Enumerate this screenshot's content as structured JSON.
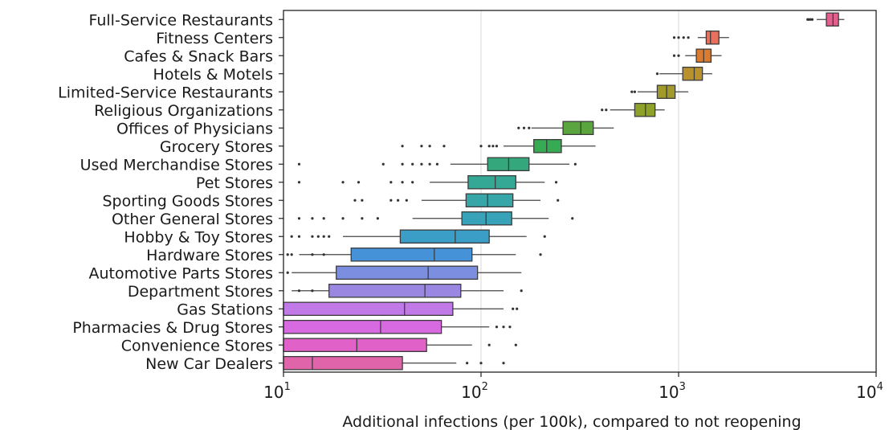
{
  "chart_data": {
    "type": "boxplot",
    "orientation": "horizontal",
    "x_scale": "log",
    "xlim": [
      10,
      10000
    ],
    "xlabel": "Additional infections (per 100k), compared to not reopening",
    "grid": "vertical",
    "x_ticks": [
      {
        "value": 10,
        "base": "10",
        "exp": "1"
      },
      {
        "value": 100,
        "base": "10",
        "exp": "2"
      },
      {
        "value": 1000,
        "base": "10",
        "exp": "3"
      },
      {
        "value": 10000,
        "base": "10",
        "exp": "4"
      }
    ],
    "categories": [
      {
        "name": "Full-Service Restaurants",
        "color": "#e35f8d",
        "q1": 5600,
        "median": 6050,
        "q3": 6450,
        "whislo": 5000,
        "whishi": 6900,
        "outliers": [
          4500,
          4550,
          4650,
          4750
        ]
      },
      {
        "name": "Fitness Centers",
        "color": "#e8705c",
        "q1": 1380,
        "median": 1450,
        "q3": 1600,
        "whislo": 1250,
        "whishi": 1800,
        "outliers": [
          950,
          1000,
          1060,
          1120
        ]
      },
      {
        "name": "Cafes & Snack Bars",
        "color": "#da7b2f",
        "q1": 1230,
        "median": 1340,
        "q3": 1460,
        "whislo": 1080,
        "whishi": 1650,
        "outliers": [
          950,
          1000
        ]
      },
      {
        "name": "Hotels & Motels",
        "color": "#b9922e",
        "q1": 1050,
        "median": 1200,
        "q3": 1320,
        "whislo": 800,
        "whishi": 1480,
        "outliers": [
          780
        ]
      },
      {
        "name": "Limited-Service Restaurants",
        "color": "#a19a2b",
        "q1": 780,
        "median": 870,
        "q3": 960,
        "whislo": 620,
        "whishi": 1120,
        "outliers": [
          580,
          600
        ]
      },
      {
        "name": "Religious Organizations",
        "color": "#8ea22a",
        "q1": 600,
        "median": 680,
        "q3": 760,
        "whislo": 450,
        "whishi": 850,
        "outliers": [
          410,
          430
        ]
      },
      {
        "name": "Offices of Physicians",
        "color": "#5ba53e",
        "q1": 260,
        "median": 320,
        "q3": 370,
        "whislo": 180,
        "whishi": 470,
        "outliers": [
          155,
          165,
          175
        ]
      },
      {
        "name": "Grocery Stores",
        "color": "#37aa54",
        "q1": 185,
        "median": 215,
        "q3": 255,
        "whislo": 130,
        "whishi": 380,
        "outliers": [
          40,
          50,
          55,
          65,
          100,
          110,
          115,
          120
        ]
      },
      {
        "name": "Used Merchandise Stores",
        "color": "#35a77c",
        "q1": 108,
        "median": 138,
        "q3": 175,
        "whislo": 70,
        "whishi": 280,
        "outliers": [
          12,
          32,
          40,
          45,
          50,
          55,
          60,
          300
        ]
      },
      {
        "name": "Pet Stores",
        "color": "#34a894",
        "q1": 86,
        "median": 118,
        "q3": 150,
        "whislo": 55,
        "whishi": 210,
        "outliers": [
          12,
          20,
          24,
          35,
          40,
          45,
          240
        ]
      },
      {
        "name": "Sporting Goods Stores",
        "color": "#36a6a8",
        "q1": 84,
        "median": 108,
        "q3": 145,
        "whislo": 50,
        "whishi": 200,
        "outliers": [
          23,
          25,
          35,
          38,
          42,
          245
        ]
      },
      {
        "name": "Other General Stores",
        "color": "#38a3b8",
        "q1": 80,
        "median": 106,
        "q3": 143,
        "whislo": 45,
        "whishi": 220,
        "outliers": [
          12,
          14,
          16,
          20,
          25,
          30,
          290
        ]
      },
      {
        "name": "Hobby & Toy Stores",
        "color": "#3a9ec6",
        "q1": 39,
        "median": 74,
        "q3": 110,
        "whislo": 20,
        "whishi": 170,
        "outliers": [
          11,
          12,
          14,
          15,
          16,
          17,
          210
        ]
      },
      {
        "name": "Hardware Stores",
        "color": "#4692d8",
        "q1": 22,
        "median": 58,
        "q3": 90,
        "whislo": 12,
        "whishi": 150,
        "outliers": [
          10.5,
          11,
          14,
          16,
          200
        ]
      },
      {
        "name": "Automotive Parts Stores",
        "color": "#7c8ee0",
        "q1": 18.5,
        "median": 54,
        "q3": 96,
        "whislo": 11,
        "whishi": 160,
        "outliers": [
          10.5
        ]
      },
      {
        "name": "Department Stores",
        "color": "#9a87e2",
        "q1": 17,
        "median": 52,
        "q3": 79,
        "whislo": 11,
        "whishi": 130,
        "outliers": [
          12,
          14,
          160
        ]
      },
      {
        "name": "Gas Stations",
        "color": "#c079e6",
        "q1": 10,
        "median": 41,
        "q3": 72,
        "whislo": 10,
        "whishi": 130,
        "outliers": [
          145,
          152
        ]
      },
      {
        "name": "Pharmacies & Drug Stores",
        "color": "#d76ae0",
        "q1": 10,
        "median": 31,
        "q3": 63,
        "whislo": 10,
        "whishi": 110,
        "outliers": [
          120,
          130,
          140
        ]
      },
      {
        "name": "Convenience Stores",
        "color": "#e062c8",
        "q1": 10,
        "median": 23.5,
        "q3": 53,
        "whislo": 10,
        "whishi": 90,
        "outliers": [
          110,
          150
        ]
      },
      {
        "name": "New Car Dealers",
        "color": "#e064aa",
        "q1": 10,
        "median": 14,
        "q3": 40,
        "whislo": 10,
        "whishi": 75,
        "outliers": [
          85,
          100,
          130
        ]
      }
    ]
  }
}
